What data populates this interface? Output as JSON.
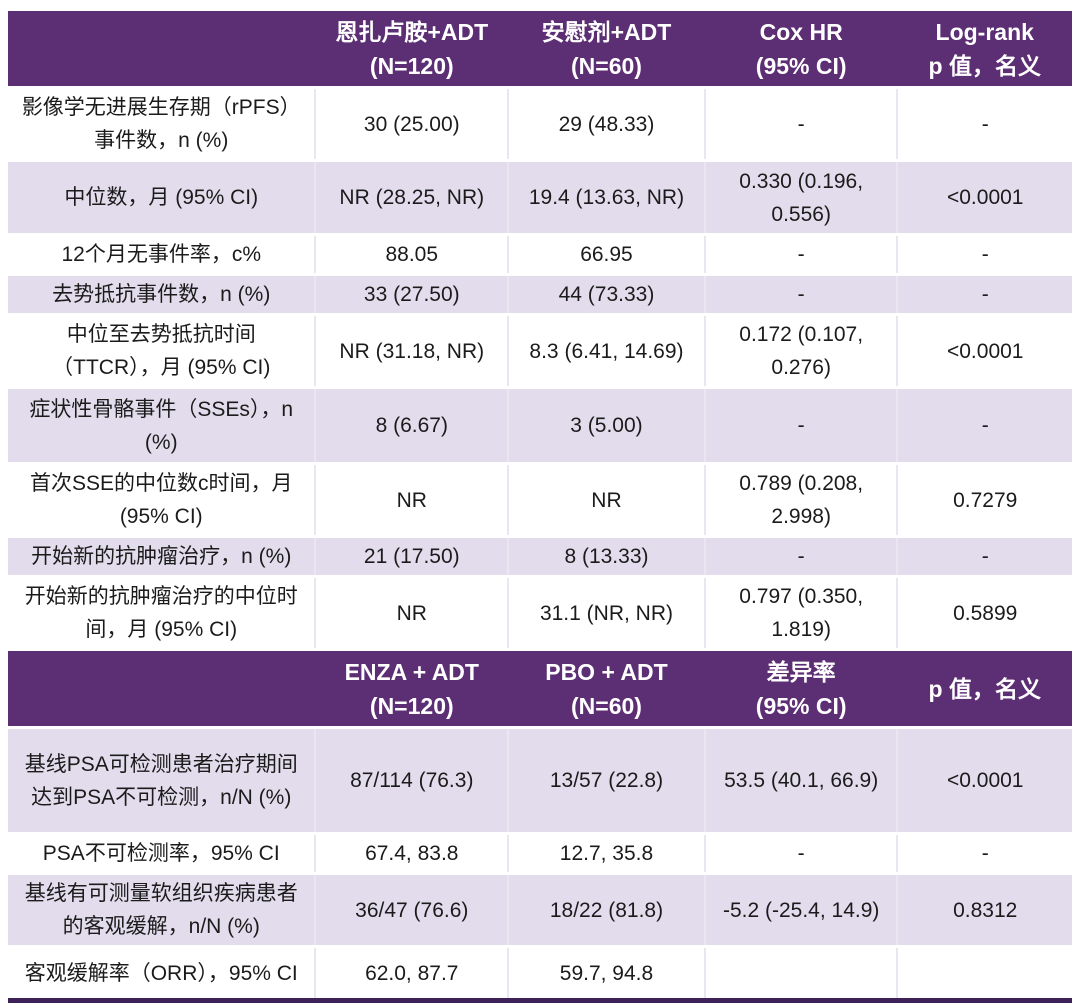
{
  "theme": {
    "header_bg": "#5c2e74",
    "header_text": "#ffffff",
    "alt_row_bg": "#e2dcec",
    "row_bg": "#ffffff",
    "body_text": "#1b1b1b",
    "grid_line": "#e9e6ef",
    "row_separator": "#ffffff",
    "bottom_border": "#3d2158",
    "page_bg": "#ffffff"
  },
  "chart_data": {
    "type": "table",
    "sections": [
      {
        "header": [
          "",
          "恩扎卢胺+ADT\n(N=120)",
          "安慰剂+ADT\n(N=60)",
          "Cox HR\n(95% CI)",
          "Log-rank\np 值，名义"
        ],
        "rows": [
          {
            "label": "影像学无进展生存期（rPFS）\n事件数，n (%)",
            "values": [
              "30 (25.00)",
              "29 (48.33)",
              "-",
              "-"
            ],
            "shade": "white"
          },
          {
            "label": "中位数，月 (95% CI)",
            "values": [
              "NR (28.25, NR)",
              "19.4 (13.63, NR)",
              "0.330 (0.196,\n0.556)",
              "<0.0001"
            ],
            "shade": "alt"
          },
          {
            "label": "12个月无事件率，c%",
            "values": [
              "88.05",
              "66.95",
              "-",
              "-"
            ],
            "shade": "white"
          },
          {
            "label": "去势抵抗事件数，n (%)",
            "values": [
              "33 (27.50)",
              "44 (73.33)",
              "-",
              "-"
            ],
            "shade": "alt"
          },
          {
            "label": "中位至去势抵抗时间\n（TTCR），月 (95% CI)",
            "values": [
              "NR (31.18, NR)",
              "8.3 (6.41, 14.69)",
              "0.172 (0.107,\n0.276)",
              "<0.0001"
            ],
            "shade": "white"
          },
          {
            "label": "症状性骨骼事件（SSEs），n\n(%)",
            "values": [
              "8 (6.67)",
              "3 (5.00)",
              "-",
              "-"
            ],
            "shade": "alt"
          },
          {
            "label": "首次SSE的中位数c时间，月\n(95% CI)",
            "values": [
              "NR",
              "NR",
              "0.789 (0.208,\n2.998)",
              "0.7279"
            ],
            "shade": "white"
          },
          {
            "label": "开始新的抗肿瘤治疗，n (%)",
            "values": [
              "21 (17.50)",
              "8 (13.33)",
              "-",
              "-"
            ],
            "shade": "alt"
          },
          {
            "label": "开始新的抗肿瘤治疗的中位时\n间，月 (95% CI)",
            "values": [
              "NR",
              "31.1 (NR, NR)",
              "0.797 (0.350,\n1.819)",
              "0.5899"
            ],
            "shade": "white"
          }
        ]
      },
      {
        "header": [
          "",
          "ENZA + ADT\n(N=120)",
          "PBO + ADT\n(N=60)",
          "差异率\n(95% CI)",
          "p 值，名义"
        ],
        "rows": [
          {
            "label": "基线PSA可检测患者治疗期间\n达到PSA不可检测，n/N (%)",
            "values": [
              "87/114 (76.3)",
              "13/57 (22.8)",
              "53.5 (40.1, 66.9)",
              "<0.0001"
            ],
            "shade": "alt"
          },
          {
            "label": "PSA不可检测率，95% CI",
            "values": [
              "67.4, 83.8",
              "12.7, 35.8",
              "-",
              "-"
            ],
            "shade": "white"
          },
          {
            "label": "基线有可测量软组织疾病患者\n的客观缓解，n/N (%)",
            "values": [
              "36/47 (76.6)",
              "18/22 (81.8)",
              "-5.2 (-25.4, 14.9)",
              "0.8312"
            ],
            "shade": "alt"
          },
          {
            "label": "客观缓解率（ORR），95% CI",
            "values": [
              "62.0, 87.7",
              "59.7, 94.8",
              "",
              ""
            ],
            "shade": "white"
          }
        ]
      }
    ]
  }
}
